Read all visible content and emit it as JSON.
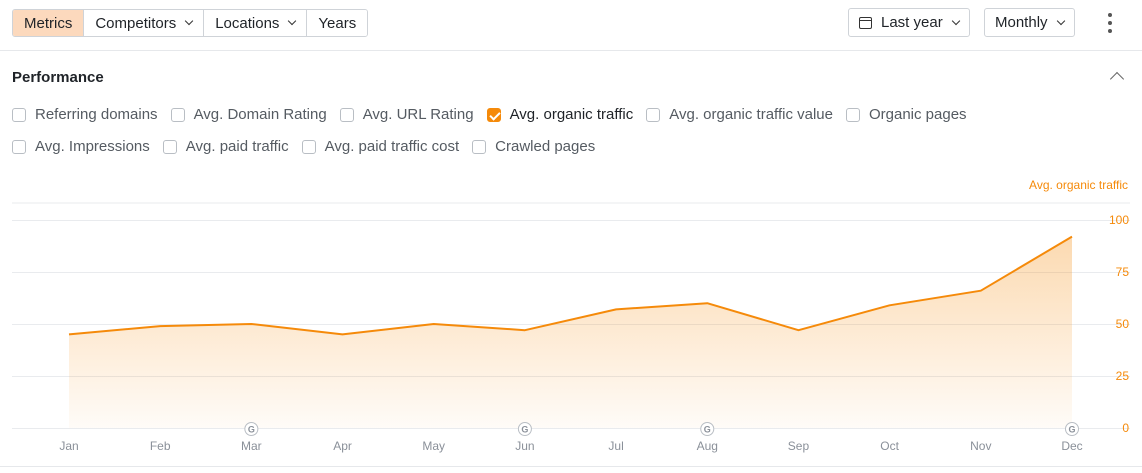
{
  "toolbar": {
    "segments": [
      {
        "label": "Metrics",
        "active": true,
        "dropdown": false
      },
      {
        "label": "Competitors",
        "active": false,
        "dropdown": true
      },
      {
        "label": "Locations",
        "active": false,
        "dropdown": true
      },
      {
        "label": "Years",
        "active": false,
        "dropdown": false
      }
    ],
    "date_range": "Last year",
    "granularity": "Monthly"
  },
  "panel": {
    "title": "Performance",
    "metrics_row1": [
      {
        "label": "Referring domains",
        "checked": false
      },
      {
        "label": "Avg. Domain Rating",
        "checked": false
      },
      {
        "label": "Avg. URL Rating",
        "checked": false
      },
      {
        "label": "Avg. organic traffic",
        "checked": true
      },
      {
        "label": "Avg. organic traffic value",
        "checked": false
      },
      {
        "label": "Organic pages",
        "checked": false
      }
    ],
    "metrics_row2": [
      {
        "label": "Avg. Impressions",
        "checked": false
      },
      {
        "label": "Avg. paid traffic",
        "checked": false
      },
      {
        "label": "Avg. paid traffic cost",
        "checked": false
      },
      {
        "label": "Crawled pages",
        "checked": false
      }
    ]
  },
  "chart_data": {
    "type": "area",
    "categories": [
      "Jan",
      "Feb",
      "Mar",
      "Apr",
      "May",
      "Jun",
      "Jul",
      "Aug",
      "Sep",
      "Oct",
      "Nov",
      "Dec"
    ],
    "series": [
      {
        "name": "Avg. organic traffic",
        "values": [
          45,
          49,
          50,
          45,
          50,
          47,
          57,
          60,
          47,
          59,
          66,
          92
        ],
        "color": "#f58a0a"
      }
    ],
    "ylim": [
      0,
      100
    ],
    "yticks": [
      0,
      25,
      50,
      75,
      100
    ],
    "grid": true,
    "google_update_markers": [
      "Mar",
      "Jun",
      "Aug",
      "Dec"
    ],
    "marker_label": "G"
  }
}
